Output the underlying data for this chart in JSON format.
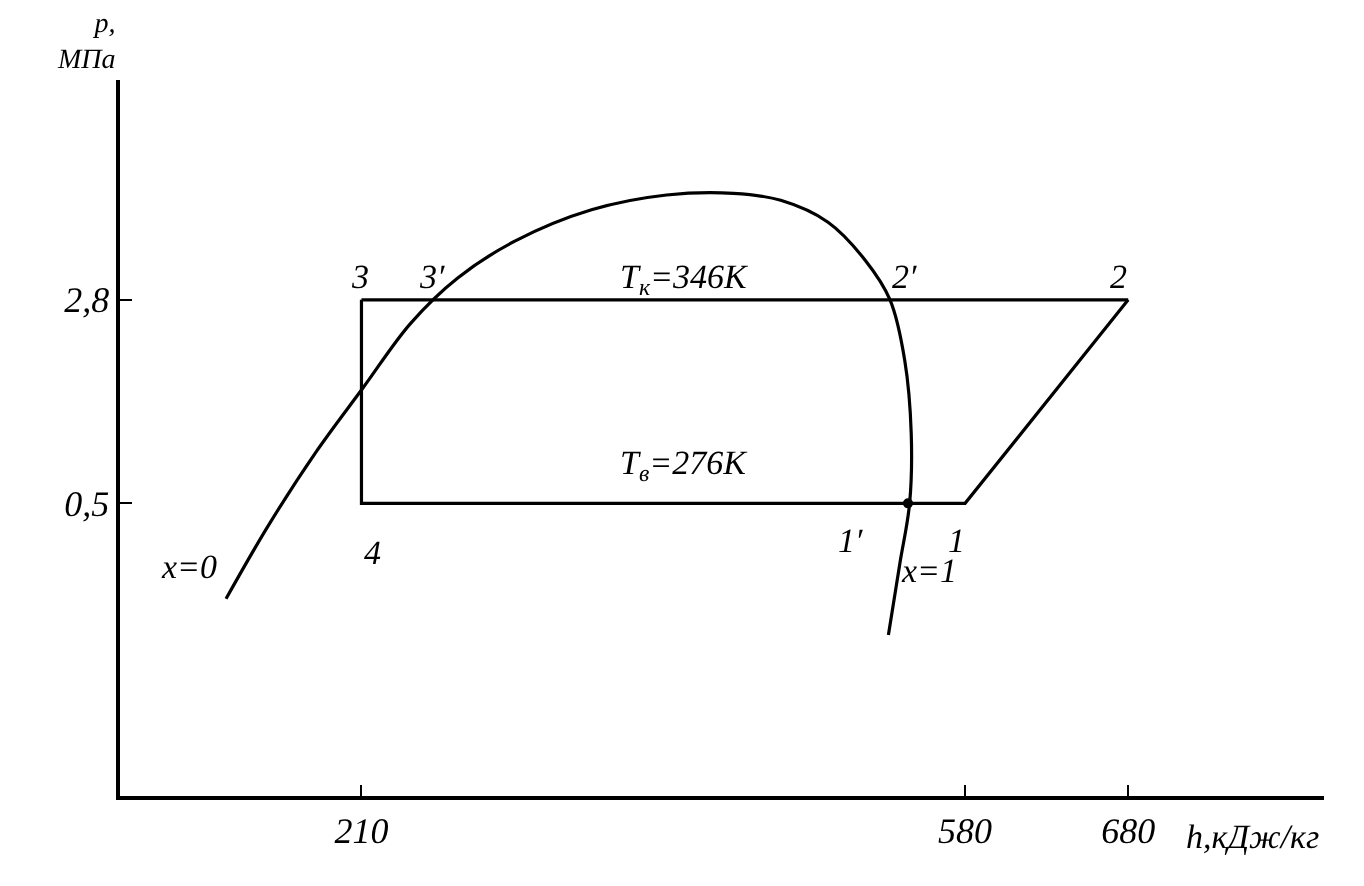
{
  "chart_data": {
    "type": "line",
    "xlabel": "h,кДж/кг",
    "ylabel": "p,\nМПа",
    "log": "y",
    "marker": "none",
    "line_style": "solid",
    "xlim": [
      62,
      800
    ],
    "ylim": [
      0.042,
      18
    ],
    "xticks": [
      210,
      580,
      680
    ],
    "yticks": [
      {
        "value": 0.5,
        "label": "0,5"
      },
      {
        "value": 2.8,
        "label": "2,8"
      }
    ],
    "series": [
      {
        "color": "#000000",
        "x": [
          127,
          153,
          182,
          211,
          240,
          269,
          304,
          351,
          397,
          438,
          467,
          496,
          519,
          534,
          543,
          547,
          546,
          540,
          533
        ],
        "values": [
          0.223,
          0.415,
          0.77,
          1.33,
          2.29,
          3.37,
          4.6,
          6.0,
          6.8,
          6.9,
          6.5,
          5.4,
          3.9,
          2.8,
          1.68,
          0.9,
          0.5,
          0.3,
          0.164
        ]
      },
      {
        "color": "#000000",
        "x": [
          210,
          210,
          580,
          680
        ],
        "values": [
          2.8,
          0.5,
          0.5,
          2.8
        ]
      },
      {
        "color": "#000000",
        "x": [
          210,
          680
        ],
        "values": [
          2.8,
          2.8
        ]
      },
      {
        "type": "scatter",
        "color": "#000000",
        "marker": "circle",
        "x": [
          545
        ],
        "values": [
          0.5
        ]
      }
    ],
    "annotations": [
      "3",
      "3′",
      "T$_{к}$=346К",
      "2′",
      "2",
      "T$_{в}$=276К",
      "4",
      "1′",
      "1",
      "x=0",
      "x=1"
    ]
  }
}
